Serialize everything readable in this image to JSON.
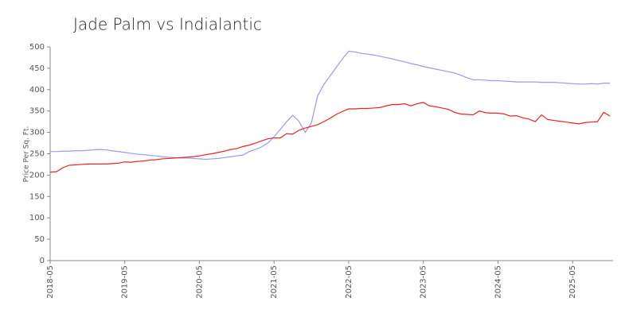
{
  "chart_data": {
    "type": "line",
    "title": "Jade Palm vs Indialantic",
    "y_label": "Price Per Sq. Ft.",
    "x": [
      "2018-05",
      "2018-06",
      "2018-07",
      "2018-08",
      "2018-09",
      "2018-10",
      "2018-11",
      "2018-12",
      "2019-01",
      "2019-02",
      "2019-03",
      "2019-04",
      "2019-05",
      "2019-06",
      "2019-07",
      "2019-08",
      "2019-09",
      "2019-10",
      "2019-11",
      "2019-12",
      "2020-01",
      "2020-02",
      "2020-03",
      "2020-04",
      "2020-05",
      "2020-06",
      "2020-07",
      "2020-08",
      "2020-09",
      "2020-10",
      "2020-11",
      "2020-12",
      "2021-01",
      "2021-02",
      "2021-03",
      "2021-04",
      "2021-05",
      "2021-06",
      "2021-07",
      "2021-08",
      "2021-09",
      "2021-10",
      "2021-11",
      "2021-12",
      "2022-01",
      "2022-02",
      "2022-03",
      "2022-04",
      "2022-05",
      "2022-06",
      "2022-07",
      "2022-08",
      "2022-09",
      "2022-10",
      "2022-11",
      "2022-12",
      "2023-01",
      "2023-02",
      "2023-03",
      "2023-04",
      "2023-05",
      "2023-06",
      "2023-07",
      "2023-08",
      "2023-09",
      "2023-10",
      "2023-11",
      "2023-12",
      "2024-01",
      "2024-02",
      "2024-03",
      "2024-04",
      "2024-05",
      "2024-06",
      "2024-07",
      "2024-08",
      "2024-09",
      "2024-10",
      "2024-11",
      "2024-12",
      "2025-01",
      "2025-02",
      "2025-03",
      "2025-04",
      "2025-05",
      "2025-06",
      "2025-07",
      "2025-08",
      "2025-09",
      "2025-10",
      "2025-11"
    ],
    "series": [
      {
        "color": "#9999ee",
        "values": [
          255,
          255,
          256,
          256,
          257,
          257,
          258,
          259,
          260,
          259,
          257,
          255,
          253,
          251,
          249,
          248,
          246,
          245,
          243,
          242,
          241,
          240,
          240,
          239,
          238,
          237,
          238,
          239,
          241,
          243,
          245,
          247,
          255,
          260,
          266,
          275,
          290,
          307,
          325,
          340,
          326,
          300,
          322,
          385,
          412,
          432,
          452,
          472,
          490,
          488,
          485,
          483,
          481,
          478,
          475,
          472,
          468,
          465,
          461,
          458,
          454,
          451,
          448,
          445,
          442,
          439,
          434,
          428,
          423,
          423,
          422,
          421,
          421,
          420,
          419,
          418,
          418,
          418,
          418,
          417,
          417,
          417,
          416,
          415,
          414,
          413,
          413,
          414,
          413,
          415,
          415
        ]
      },
      {
        "color": "#ee2222",
        "values": [
          207,
          208,
          217,
          223,
          224,
          225,
          226,
          226,
          226,
          226,
          227,
          228,
          231,
          230,
          232,
          233,
          235,
          236,
          238,
          239,
          240,
          241,
          242,
          243,
          245,
          248,
          250,
          253,
          256,
          260,
          262,
          267,
          270,
          275,
          280,
          285,
          287,
          287,
          297,
          296,
          305,
          310,
          314,
          318,
          325,
          333,
          342,
          349,
          355,
          355,
          356,
          356,
          357,
          358,
          362,
          365,
          365,
          367,
          362,
          367,
          370,
          362,
          360,
          357,
          354,
          347,
          343,
          342,
          341,
          350,
          346,
          345,
          345,
          343,
          338,
          339,
          334,
          331,
          325,
          341,
          330,
          328,
          326,
          324,
          322,
          320,
          323,
          324,
          325,
          347,
          338
        ]
      }
    ],
    "xticks": [
      "2018-05",
      "2019-05",
      "2020-05",
      "2021-05",
      "2022-05",
      "2023-05",
      "2024-05",
      "2025-05"
    ],
    "ylim": [
      0,
      500
    ],
    "yticks": [
      0,
      50,
      100,
      150,
      200,
      250,
      300,
      350,
      400,
      450,
      500
    ]
  }
}
